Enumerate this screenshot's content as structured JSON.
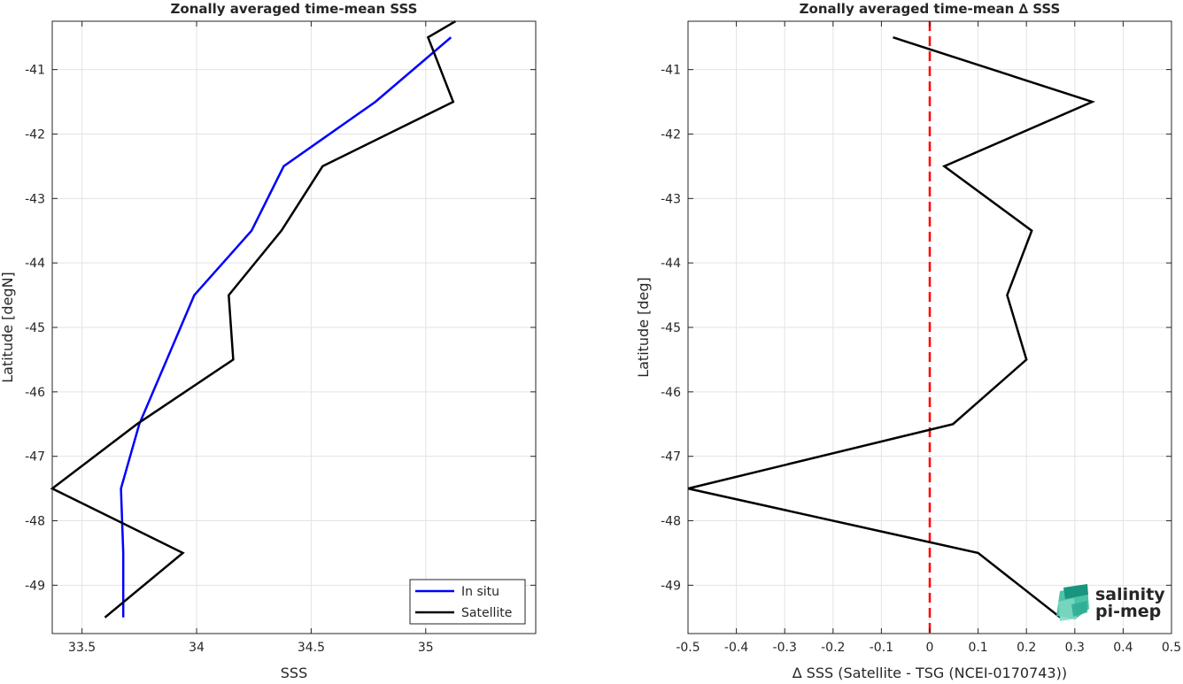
{
  "chart_data": [
    {
      "type": "line",
      "title": "Zonally averaged time-mean SSS",
      "xlabel": "SSS",
      "ylabel": "Latitude [degN]",
      "xlim": [
        33.37,
        35.48
      ],
      "ylim": [
        -49.75,
        -40.25
      ],
      "xticks": [
        33.5,
        34,
        34.5,
        35
      ],
      "xtick_labels": [
        "33.5",
        "34",
        "34.5",
        "35"
      ],
      "yticks": [
        -41,
        -42,
        -43,
        -44,
        -45,
        -46,
        -47,
        -48,
        -49
      ],
      "ytick_labels": [
        "-41",
        "-42",
        "-43",
        "-44",
        "-45",
        "-46",
        "-47",
        "-48",
        "-49"
      ],
      "grid": true,
      "legend_position": "bottom-right",
      "series": [
        {
          "name": "In situ",
          "color": "#0000ff",
          "points": [
            [
              35.11,
              -40.5
            ],
            [
              34.78,
              -41.5
            ],
            [
              34.38,
              -42.5
            ],
            [
              34.24,
              -43.5
            ],
            [
              33.99,
              -44.5
            ],
            [
              33.87,
              -45.5
            ],
            [
              33.75,
              -46.5
            ],
            [
              33.67,
              -47.5
            ],
            [
              33.68,
              -48.5
            ],
            [
              33.68,
              -49.5
            ]
          ]
        },
        {
          "name": "Satellite",
          "color": "#000000",
          "points": [
            [
              35.13,
              -40.25
            ],
            [
              35.01,
              -40.5
            ],
            [
              35.12,
              -41.5
            ],
            [
              34.55,
              -42.5
            ],
            [
              34.37,
              -43.5
            ],
            [
              34.14,
              -44.5
            ],
            [
              34.16,
              -45.5
            ],
            [
              33.74,
              -46.5
            ],
            [
              33.37,
              -47.5
            ],
            [
              33.94,
              -48.5
            ],
            [
              33.6,
              -49.5
            ]
          ]
        }
      ]
    },
    {
      "type": "line",
      "title": "Zonally averaged time-mean ∆ SSS",
      "xlabel": "∆ SSS (Satellite - TSG (NCEI-0170743))",
      "ylabel": "Latitude [deg]",
      "xlim": [
        -0.5,
        0.5
      ],
      "ylim": [
        -49.75,
        -40.25
      ],
      "xticks": [
        -0.5,
        -0.4,
        -0.3,
        -0.2,
        -0.1,
        0,
        0.1,
        0.2,
        0.3,
        0.4,
        0.5
      ],
      "xtick_labels": [
        "-0.5",
        "-0.4",
        "-0.3",
        "-0.2",
        "-0.1",
        "0",
        "0.1",
        "0.2",
        "0.3",
        "0.4",
        "0.5"
      ],
      "yticks": [
        -41,
        -42,
        -43,
        -44,
        -45,
        -46,
        -47,
        -48,
        -49
      ],
      "ytick_labels": [
        "-41",
        "-42",
        "-43",
        "-44",
        "-45",
        "-46",
        "-47",
        "-48",
        "-49"
      ],
      "grid": true,
      "reference_line": {
        "x": 0,
        "color": "#ff0000",
        "style": "dashed"
      },
      "series": [
        {
          "name": "",
          "color": "#000000",
          "points": [
            [
              -0.076,
              -40.5
            ],
            [
              0.336,
              -41.5
            ],
            [
              0.03,
              -42.5
            ],
            [
              0.211,
              -43.5
            ],
            [
              0.16,
              -44.5
            ],
            [
              0.2,
              -45.5
            ],
            [
              0.048,
              -46.5
            ],
            [
              -0.5,
              -47.5
            ],
            [
              0.1,
              -48.5
            ],
            [
              0.27,
              -49.5
            ]
          ]
        }
      ]
    }
  ],
  "logo": {
    "line1": "salinity",
    "line2": "pi-mep",
    "color": "#1a9e8c"
  }
}
